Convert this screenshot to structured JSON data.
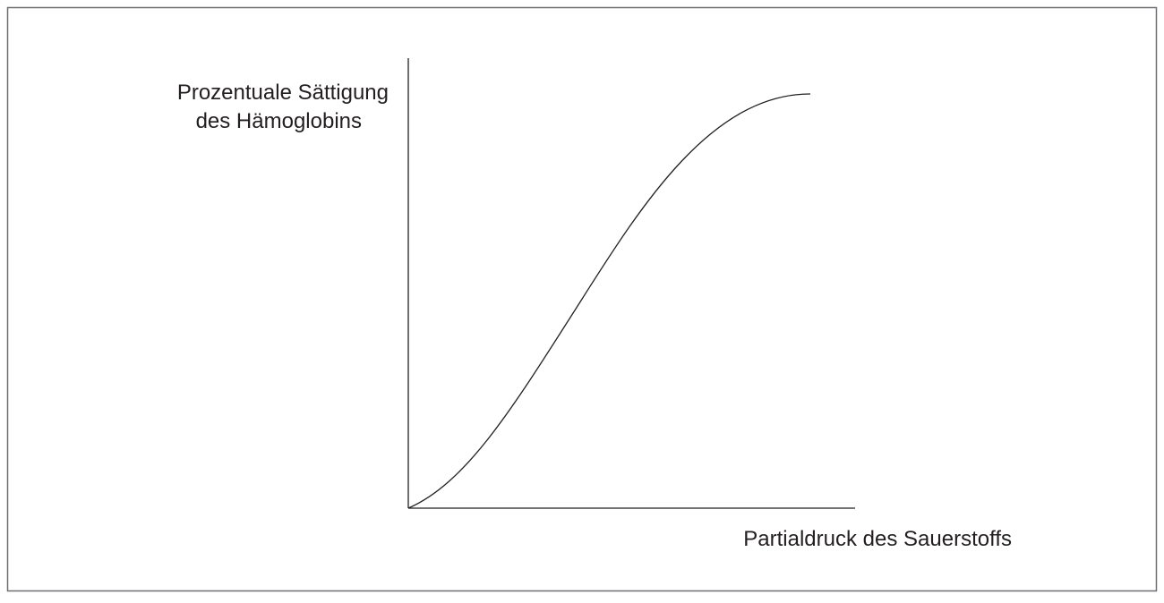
{
  "y_axis_label": {
    "lines": [
      "Prozentuale Sättigung",
      "des Hämoglobins"
    ]
  },
  "x_axis_label": "Partialdruck des Sauerstoffs"
}
